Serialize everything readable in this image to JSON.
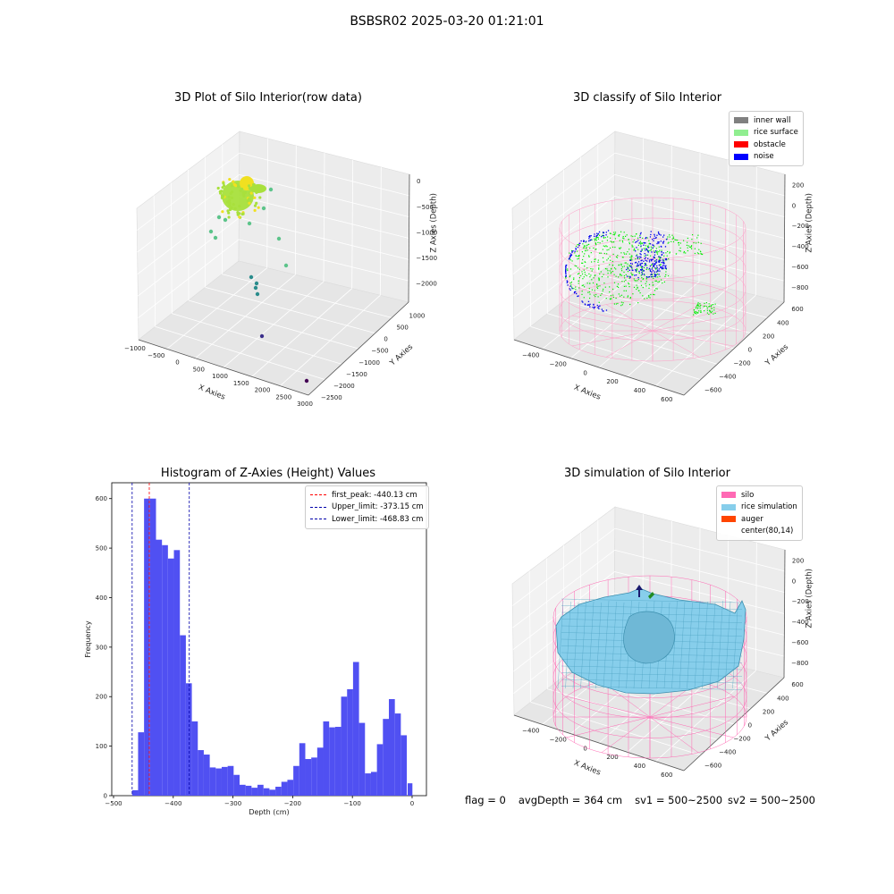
{
  "suptitle": "BSBSR02 2025-03-20 01:21:01",
  "footer": {
    "flag": "flag = 0",
    "avg_depth": "avgDepth = 364 cm",
    "sv1": "sv1 = 500~2500",
    "sv2": "sv2 = 500~2500"
  },
  "chart_data": [
    {
      "type": "scatter",
      "title": "3D Plot of Silo Interior(row data)",
      "xlabel": "X Axies",
      "ylabel": "Y Axies",
      "zlabel": "Z Axies (Depth)",
      "xticks": [
        "−1000",
        "−500",
        "0",
        "500",
        "1000",
        "1500",
        "2000",
        "2500",
        "3000"
      ],
      "yticks": [
        "1000",
        "500",
        "0",
        "−500",
        "−1000",
        "−1500",
        "−2000",
        "−2500"
      ],
      "zticks": [
        "0",
        "−500",
        "−1000",
        "−1500",
        "−2000"
      ],
      "colors": {
        "cluster": "#a8e03c",
        "top": "#f0e020",
        "mid": "#5cc48a",
        "low": "#2a8c8c",
        "deep": "#3b2f8a",
        "deepest": "#440154"
      }
    },
    {
      "type": "scatter",
      "title": "3D classify of Silo Interior",
      "xlabel": "X Axies",
      "ylabel": "Y Axies",
      "zlabel": "Z Axies (Depth)",
      "xticks": [
        "−400",
        "−200",
        "0",
        "200",
        "400",
        "600"
      ],
      "yticks": [
        "600",
        "400",
        "200",
        "0",
        "−200",
        "−400",
        "−600"
      ],
      "zticks": [
        "200",
        "0",
        "−200",
        "−400",
        "−600",
        "−800"
      ],
      "legend": [
        {
          "label": "inner wall",
          "color": "#808080"
        },
        {
          "label": "rice surface",
          "color": "#90ee90"
        },
        {
          "label": "obstacle",
          "color": "#ff0000"
        },
        {
          "label": "noise",
          "color": "#0000ff"
        }
      ],
      "colors": {
        "wall": "#ff9ec8",
        "surface": "#00ee00",
        "noise": "#0000ee"
      }
    },
    {
      "type": "bar",
      "title": "Histogram of Z-Axies (Height) Values",
      "xlabel": "Depth (cm)",
      "ylabel": "Frequency",
      "xlim": [
        -503,
        24
      ],
      "ylim": [
        0,
        632
      ],
      "xticks": [
        -500,
        -400,
        -300,
        -200,
        -100,
        0
      ],
      "yticks": [
        0,
        100,
        200,
        300,
        400,
        500,
        600
      ],
      "bin_width": 10.0,
      "bins": [
        {
          "x0": -478.9,
          "count": 0
        },
        {
          "x0": -468.9,
          "count": 11
        },
        {
          "x0": -458.9,
          "count": 128
        },
        {
          "x0": -448.9,
          "count": 600
        },
        {
          "x0": -438.9,
          "count": 600
        },
        {
          "x0": -428.9,
          "count": 517
        },
        {
          "x0": -418.9,
          "count": 506
        },
        {
          "x0": -408.9,
          "count": 479
        },
        {
          "x0": -398.9,
          "count": 496
        },
        {
          "x0": -388.9,
          "count": 324
        },
        {
          "x0": -378.9,
          "count": 227
        },
        {
          "x0": -368.9,
          "count": 150
        },
        {
          "x0": -358.9,
          "count": 92
        },
        {
          "x0": -348.9,
          "count": 83
        },
        {
          "x0": -338.9,
          "count": 57
        },
        {
          "x0": -328.9,
          "count": 55
        },
        {
          "x0": -318.9,
          "count": 58
        },
        {
          "x0": -308.9,
          "count": 60
        },
        {
          "x0": -298.9,
          "count": 42
        },
        {
          "x0": -288.9,
          "count": 22
        },
        {
          "x0": -278.9,
          "count": 20
        },
        {
          "x0": -268.9,
          "count": 16
        },
        {
          "x0": -258.9,
          "count": 22
        },
        {
          "x0": -248.9,
          "count": 15
        },
        {
          "x0": -238.9,
          "count": 12
        },
        {
          "x0": -228.9,
          "count": 18
        },
        {
          "x0": -218.9,
          "count": 28
        },
        {
          "x0": -208.9,
          "count": 32
        },
        {
          "x0": -198.9,
          "count": 60
        },
        {
          "x0": -188.9,
          "count": 106
        },
        {
          "x0": -178.9,
          "count": 74
        },
        {
          "x0": -168.9,
          "count": 77
        },
        {
          "x0": -158.9,
          "count": 97
        },
        {
          "x0": -148.9,
          "count": 150
        },
        {
          "x0": -138.9,
          "count": 138
        },
        {
          "x0": -128.9,
          "count": 139
        },
        {
          "x0": -118.9,
          "count": 200
        },
        {
          "x0": -108.9,
          "count": 215
        },
        {
          "x0": -98.9,
          "count": 270
        },
        {
          "x0": -88.9,
          "count": 147
        },
        {
          "x0": -78.9,
          "count": 45
        },
        {
          "x0": -68.9,
          "count": 48
        },
        {
          "x0": -58.9,
          "count": 104
        },
        {
          "x0": -48.9,
          "count": 155
        },
        {
          "x0": -38.9,
          "count": 195
        },
        {
          "x0": -28.9,
          "count": 166
        },
        {
          "x0": -18.9,
          "count": 122
        },
        {
          "x0": -8.9,
          "count": 0
        },
        {
          "x0": 1.1,
          "count": 0
        },
        {
          "x0": -8.9,
          "count": 0
        },
        {
          "x0": -3.9,
          "count": 0
        }
      ],
      "extra_bin": {
        "x0": -7.5,
        "x1": 0.5,
        "count": 25
      },
      "vlines": [
        {
          "label": "first_peak: -440.13 cm",
          "x": -440.13,
          "color": "#ff0000"
        },
        {
          "label": "Upper_limit: -373.15 cm",
          "x": -373.15,
          "color": "#0000aa"
        },
        {
          "label": "Lower_limit: -468.83 cm",
          "x": -468.83,
          "color": "#0000aa"
        }
      ],
      "bar_color": "#5050f2"
    },
    {
      "type": "surface",
      "title": "3D simulation of Silo Interior",
      "xlabel": "X Axies",
      "ylabel": "Y Axies",
      "zlabel": "Z Axies (Depth)",
      "xticks": [
        "−400",
        "−200",
        "0",
        "200",
        "400",
        "600"
      ],
      "yticks": [
        "600",
        "400",
        "200",
        "0",
        "−200",
        "−400",
        "−600"
      ],
      "zticks": [
        "200",
        "0",
        "−200",
        "−400",
        "−600",
        "−800"
      ],
      "legend": [
        {
          "label": "silo",
          "color": "#ff69b4"
        },
        {
          "label": "rice simulation",
          "color": "#87ceeb"
        },
        {
          "label": "auger",
          "color": "#ff4500"
        },
        {
          "label": "center(80,14)",
          "color": "#ffffff"
        }
      ]
    }
  ]
}
